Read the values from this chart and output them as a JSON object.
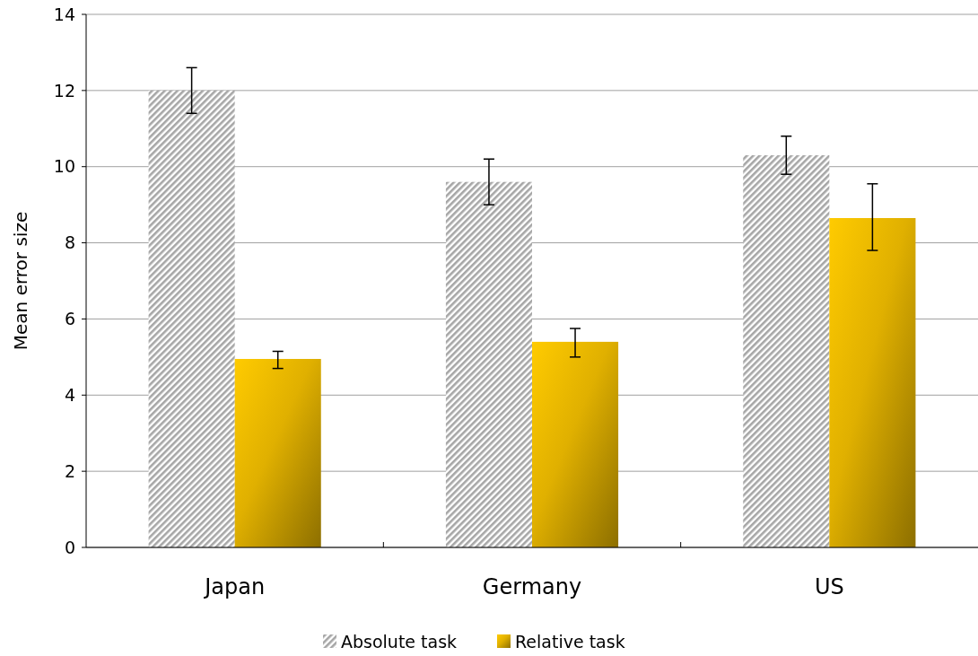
{
  "chart_data": {
    "type": "bar",
    "ylabel": "Mean error size",
    "categories": [
      "Japan",
      "Germany",
      "US"
    ],
    "series": [
      {
        "name": "Absolute task",
        "color": "#a6a6a6",
        "values": [
          12.0,
          9.6,
          10.3
        ],
        "errors": [
          [
            11.4,
            12.6
          ],
          [
            9.0,
            10.2
          ],
          [
            9.8,
            10.8
          ]
        ]
      },
      {
        "name": "Relative task",
        "color": "#e0b000",
        "values": [
          4.95,
          5.4,
          8.65
        ],
        "errors": [
          [
            4.7,
            5.15
          ],
          [
            5.0,
            5.75
          ],
          [
            7.8,
            9.55
          ]
        ]
      }
    ],
    "ylim": [
      0,
      14
    ],
    "yticks": [
      0,
      2,
      4,
      6,
      8,
      10,
      12,
      14
    ],
    "grid": "y",
    "legend": "bottom"
  }
}
